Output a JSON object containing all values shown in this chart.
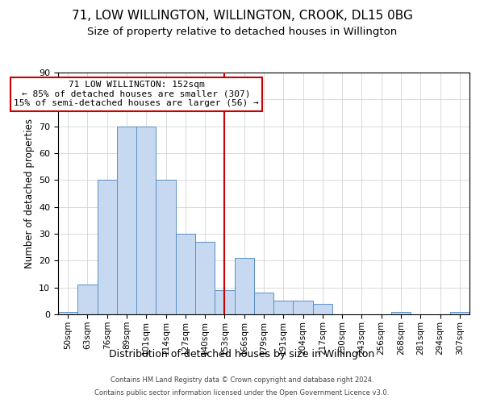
{
  "title": "71, LOW WILLINGTON, WILLINGTON, CROOK, DL15 0BG",
  "subtitle": "Size of property relative to detached houses in Willington",
  "xlabel": "Distribution of detached houses by size in Willington",
  "ylabel": "Number of detached properties",
  "bar_labels": [
    "50sqm",
    "63sqm",
    "76sqm",
    "89sqm",
    "101sqm",
    "114sqm",
    "127sqm",
    "140sqm",
    "153sqm",
    "166sqm",
    "179sqm",
    "191sqm",
    "204sqm",
    "217sqm",
    "230sqm",
    "243sqm",
    "256sqm",
    "268sqm",
    "281sqm",
    "294sqm",
    "307sqm"
  ],
  "bar_heights": [
    1,
    11,
    50,
    70,
    70,
    50,
    30,
    27,
    9,
    21,
    8,
    5,
    5,
    4,
    0,
    0,
    0,
    1,
    0,
    0,
    1
  ],
  "bar_color": "#c6d9f1",
  "bar_edge_color": "#5a8fc3",
  "vline_x": 8,
  "vline_color": "#cc0000",
  "ylim": [
    0,
    90
  ],
  "annotation_title": "71 LOW WILLINGTON: 152sqm",
  "annotation_line1": "← 85% of detached houses are smaller (307)",
  "annotation_line2": "15% of semi-detached houses are larger (56) →",
  "annotation_box_color": "#ffffff",
  "annotation_box_edge": "#cc0000",
  "footer1": "Contains HM Land Registry data © Crown copyright and database right 2024.",
  "footer2": "Contains public sector information licensed under the Open Government Licence v3.0.",
  "title_fontsize": 11,
  "subtitle_fontsize": 9.5,
  "background_color": "#ffffff"
}
